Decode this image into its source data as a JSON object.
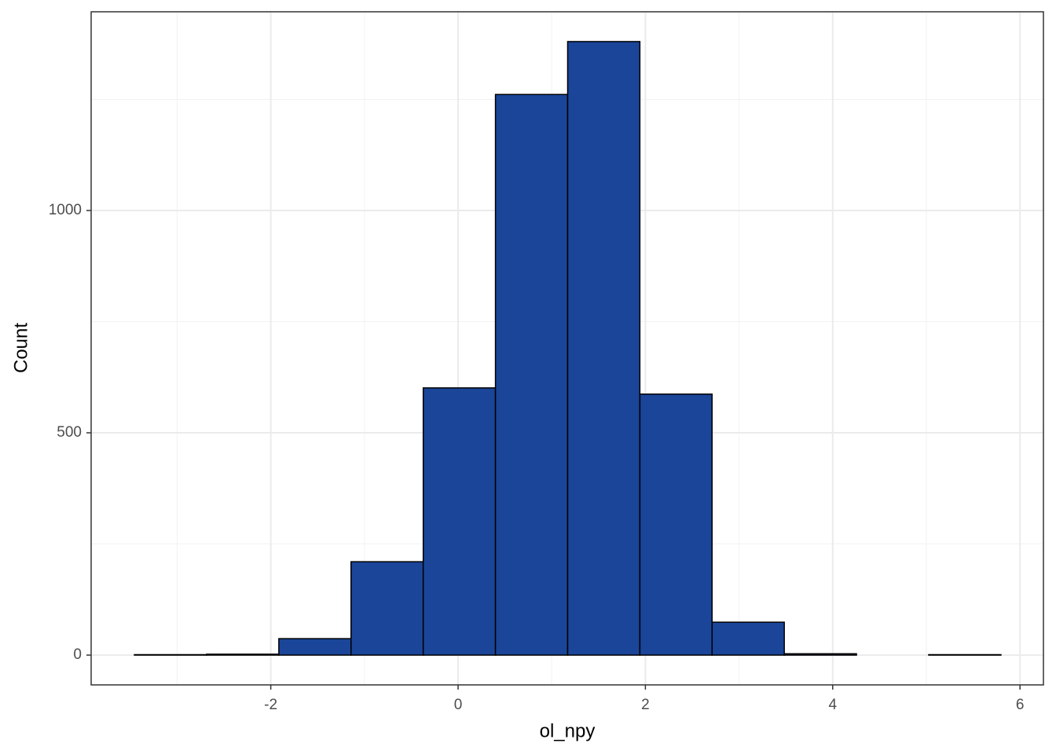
{
  "chart_data": {
    "type": "histogram",
    "x_label": "ol_npy",
    "y_label": "Count",
    "bins": [
      -3.456,
      -2.685,
      -1.914,
      -1.143,
      -0.372,
      0.399,
      1.17,
      1.941,
      2.712,
      3.483,
      4.254,
      5.025,
      5.796
    ],
    "values": [
      1,
      2,
      37,
      210,
      601,
      1261,
      1380,
      587,
      74,
      3,
      0,
      1
    ],
    "color": "#1a4599",
    "edge_color": "#000000",
    "xlim": [
      -3.918,
      6.25
    ],
    "ylim": [
      -67,
      1447
    ],
    "xticks": [
      -2,
      0,
      2,
      4,
      6
    ],
    "yticks": [
      0,
      500,
      1000
    ],
    "minor_xticks": [
      -3,
      -1,
      1,
      3,
      5
    ],
    "minor_yticks": [
      250,
      750,
      1250
    ],
    "grid": true
  }
}
